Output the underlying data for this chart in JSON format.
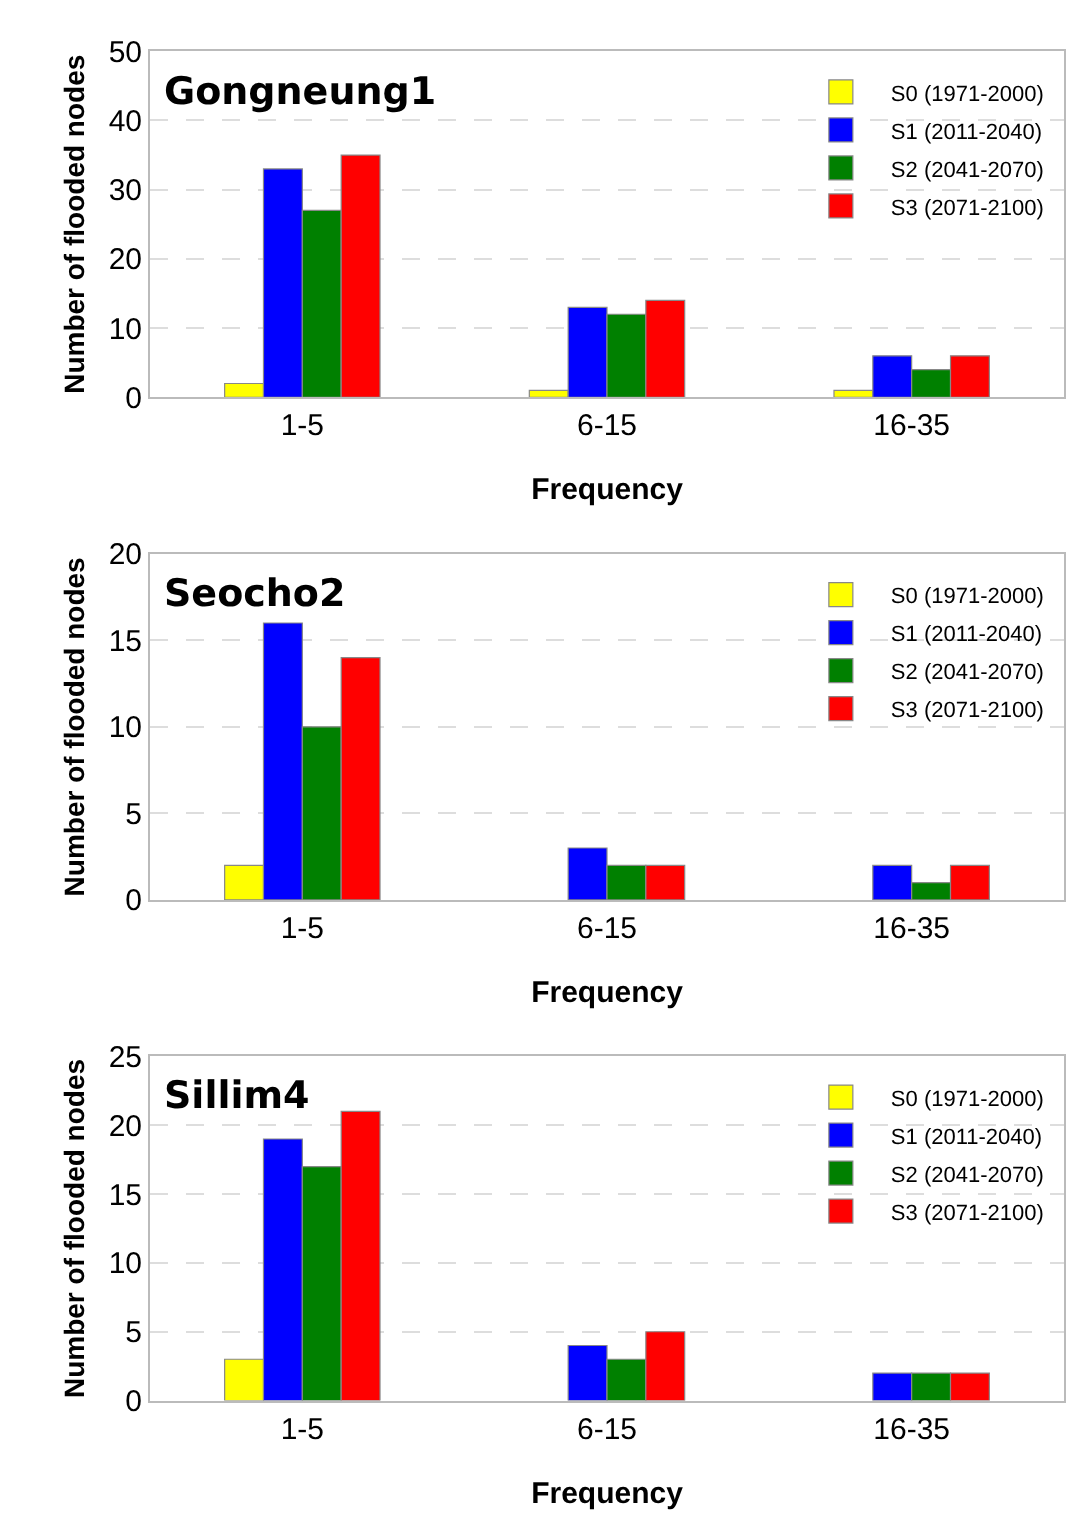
{
  "chart_data": [
    {
      "type": "bar",
      "title": "Gongneung1",
      "xlabel": "Frequency",
      "ylabel": "Number of flooded nodes",
      "categories": [
        "1-5",
        "6-15",
        "16-35"
      ],
      "ylim": [
        0,
        50
      ],
      "yticks": [
        0,
        10,
        20,
        30,
        40,
        50
      ],
      "grid": "y",
      "legend": "top right",
      "series": [
        {
          "name": "S0 (1971-2000)",
          "color": "#ffff00",
          "values": [
            2,
            1,
            1
          ]
        },
        {
          "name": "S1 (2011-2040)",
          "color": "#0000ff",
          "values": [
            33,
            13,
            6
          ]
        },
        {
          "name": "S2 (2041-2070)",
          "color": "#008000",
          "values": [
            27,
            12,
            4
          ]
        },
        {
          "name": "S3 (2071-2100)",
          "color": "#ff0000",
          "values": [
            35,
            14,
            6
          ]
        }
      ]
    },
    {
      "type": "bar",
      "title": "Seocho2",
      "xlabel": "Frequency",
      "ylabel": "Number of flooded nodes",
      "categories": [
        "1-5",
        "6-15",
        "16-35"
      ],
      "ylim": [
        0,
        20
      ],
      "yticks": [
        0,
        5,
        10,
        15,
        20
      ],
      "grid": "y",
      "legend": "top right",
      "series": [
        {
          "name": "S0 (1971-2000)",
          "color": "#ffff00",
          "values": [
            2,
            0,
            0
          ]
        },
        {
          "name": "S1 (2011-2040)",
          "color": "#0000ff",
          "values": [
            16,
            3,
            2
          ]
        },
        {
          "name": "S2 (2041-2070)",
          "color": "#008000",
          "values": [
            10,
            2,
            1
          ]
        },
        {
          "name": "S3 (2071-2100)",
          "color": "#ff0000",
          "values": [
            14,
            2,
            2
          ]
        }
      ]
    },
    {
      "type": "bar",
      "title": "Sillim4",
      "xlabel": "Frequency",
      "ylabel": "Number of flooded nodes",
      "categories": [
        "1-5",
        "6-15",
        "16-35"
      ],
      "ylim": [
        0,
        25
      ],
      "yticks": [
        0,
        5,
        10,
        15,
        20,
        25
      ],
      "grid": "y",
      "legend": "top right",
      "series": [
        {
          "name": "S0 (1971-2000)",
          "color": "#ffff00",
          "values": [
            3,
            0,
            0
          ]
        },
        {
          "name": "S1 (2011-2040)",
          "color": "#0000ff",
          "values": [
            19,
            4,
            2
          ]
        },
        {
          "name": "S2 (2041-2070)",
          "color": "#008000",
          "values": [
            17,
            3,
            2
          ]
        },
        {
          "name": "S3 (2071-2100)",
          "color": "#ff0000",
          "values": [
            21,
            5,
            2
          ]
        }
      ]
    }
  ]
}
